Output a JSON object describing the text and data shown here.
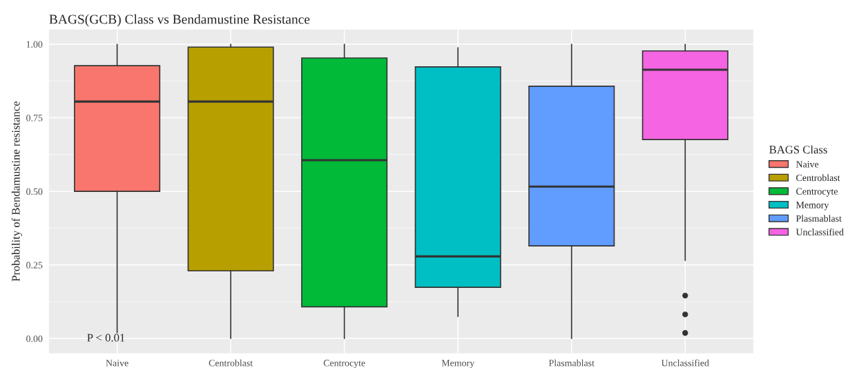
{
  "chart_data": {
    "type": "box",
    "title": "BAGS(GCB) Class vs Bendamustine Resistance",
    "ylabel": "Probability of Bendamustine resistance",
    "legend_title": "BAGS Class",
    "categories": [
      "Naive",
      "Centroblast",
      "Centrocyte",
      "Memory",
      "Plasmablast",
      "Unclassified"
    ],
    "series": [
      {
        "name": "Naive",
        "color": "#f8766d",
        "boxes": [
          {
            "low": 0.02,
            "q1": 0.5,
            "median": 0.805,
            "q3": 0.927,
            "high": 1.0
          },
          null,
          null,
          null,
          null,
          null
        ]
      },
      {
        "name": "Centroblast",
        "color": "#b79f00",
        "boxes": [
          null,
          {
            "low": 0.0,
            "q1": 0.23,
            "median": 0.805,
            "q3": 0.99,
            "high": 1.0
          },
          null,
          null,
          null,
          null
        ]
      },
      {
        "name": "Centrocyte",
        "color": "#00ba38",
        "boxes": [
          null,
          null,
          {
            "low": 0.0,
            "q1": 0.108,
            "median": 0.606,
            "q3": 0.953,
            "high": 1.0
          },
          null,
          null,
          null
        ]
      },
      {
        "name": "Memory",
        "color": "#00bfc4",
        "boxes": [
          null,
          null,
          null,
          {
            "low": 0.075,
            "q1": 0.174,
            "median": 0.279,
            "q3": 0.923,
            "high": 0.988
          },
          null,
          null
        ]
      },
      {
        "name": "Plasmablast",
        "color": "#619cff",
        "boxes": [
          null,
          null,
          null,
          null,
          {
            "low": 0.0,
            "q1": 0.315,
            "median": 0.516,
            "q3": 0.857,
            "high": 1.0
          },
          null
        ]
      },
      {
        "name": "Unclassified",
        "color": "#f564e3",
        "boxes": [
          null,
          null,
          null,
          null,
          null,
          {
            "low": 0.265,
            "q1": 0.676,
            "median": 0.913,
            "q3": 0.977,
            "high": 1.0,
            "outliers": [
              0.146,
              0.082,
              0.019
            ]
          }
        ]
      }
    ],
    "ylim": [
      -0.05,
      1.05
    ],
    "yticks": [
      {
        "value": 0,
        "label": "0.00"
      },
      {
        "value": 0.25,
        "label": "0.25"
      },
      {
        "value": 0.5,
        "label": "0.50"
      },
      {
        "value": 0.75,
        "label": "0.75"
      },
      {
        "value": 1,
        "label": "1.00"
      }
    ],
    "grid": true,
    "legend": "right",
    "annotations": [
      "P < 0.01"
    ]
  }
}
